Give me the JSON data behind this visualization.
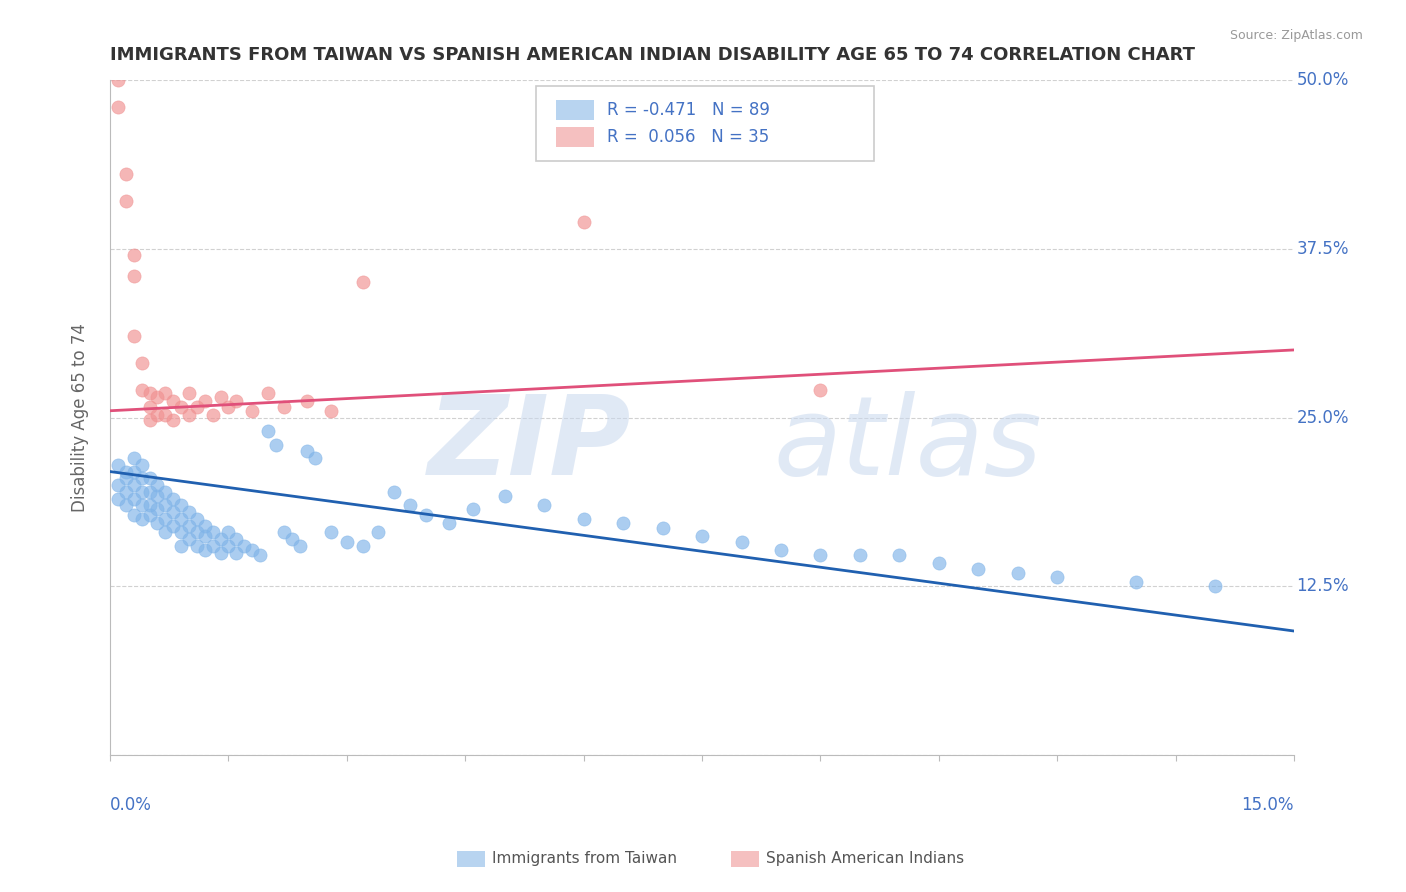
{
  "title": "IMMIGRANTS FROM TAIWAN VS SPANISH AMERICAN INDIAN DISABILITY AGE 65 TO 74 CORRELATION CHART",
  "source": "Source: ZipAtlas.com",
  "ylabel_label": "Disability Age 65 to 74",
  "xmin": 0.0,
  "xmax": 0.15,
  "ymin": 0.0,
  "ymax": 0.5,
  "blue_scatter_x": [
    0.001,
    0.001,
    0.001,
    0.002,
    0.002,
    0.002,
    0.002,
    0.003,
    0.003,
    0.003,
    0.003,
    0.003,
    0.004,
    0.004,
    0.004,
    0.004,
    0.004,
    0.005,
    0.005,
    0.005,
    0.005,
    0.006,
    0.006,
    0.006,
    0.006,
    0.007,
    0.007,
    0.007,
    0.007,
    0.008,
    0.008,
    0.008,
    0.009,
    0.009,
    0.009,
    0.009,
    0.01,
    0.01,
    0.01,
    0.011,
    0.011,
    0.011,
    0.012,
    0.012,
    0.012,
    0.013,
    0.013,
    0.014,
    0.014,
    0.015,
    0.015,
    0.016,
    0.016,
    0.017,
    0.018,
    0.019,
    0.02,
    0.021,
    0.022,
    0.023,
    0.024,
    0.025,
    0.026,
    0.028,
    0.03,
    0.032,
    0.034,
    0.036,
    0.038,
    0.04,
    0.043,
    0.046,
    0.05,
    0.055,
    0.06,
    0.065,
    0.07,
    0.075,
    0.08,
    0.085,
    0.09,
    0.095,
    0.1,
    0.105,
    0.11,
    0.115,
    0.12,
    0.13,
    0.14
  ],
  "blue_scatter_y": [
    0.215,
    0.2,
    0.19,
    0.21,
    0.205,
    0.195,
    0.185,
    0.22,
    0.21,
    0.2,
    0.19,
    0.178,
    0.215,
    0.205,
    0.195,
    0.185,
    0.175,
    0.205,
    0.195,
    0.185,
    0.178,
    0.2,
    0.192,
    0.182,
    0.172,
    0.195,
    0.185,
    0.175,
    0.165,
    0.19,
    0.18,
    0.17,
    0.185,
    0.175,
    0.165,
    0.155,
    0.18,
    0.17,
    0.16,
    0.175,
    0.165,
    0.155,
    0.17,
    0.162,
    0.152,
    0.165,
    0.155,
    0.16,
    0.15,
    0.165,
    0.155,
    0.16,
    0.15,
    0.155,
    0.152,
    0.148,
    0.24,
    0.23,
    0.165,
    0.16,
    0.155,
    0.225,
    0.22,
    0.165,
    0.158,
    0.155,
    0.165,
    0.195,
    0.185,
    0.178,
    0.172,
    0.182,
    0.192,
    0.185,
    0.175,
    0.172,
    0.168,
    0.162,
    0.158,
    0.152,
    0.148,
    0.148,
    0.148,
    0.142,
    0.138,
    0.135,
    0.132,
    0.128,
    0.125
  ],
  "pink_scatter_x": [
    0.001,
    0.001,
    0.002,
    0.002,
    0.003,
    0.003,
    0.003,
    0.004,
    0.004,
    0.005,
    0.005,
    0.005,
    0.006,
    0.006,
    0.007,
    0.007,
    0.008,
    0.008,
    0.009,
    0.01,
    0.01,
    0.011,
    0.012,
    0.013,
    0.014,
    0.015,
    0.016,
    0.018,
    0.02,
    0.022,
    0.025,
    0.028,
    0.032,
    0.06,
    0.09
  ],
  "pink_scatter_y": [
    0.5,
    0.48,
    0.43,
    0.41,
    0.37,
    0.355,
    0.31,
    0.29,
    0.27,
    0.268,
    0.258,
    0.248,
    0.265,
    0.252,
    0.268,
    0.252,
    0.262,
    0.248,
    0.258,
    0.268,
    0.252,
    0.258,
    0.262,
    0.252,
    0.265,
    0.258,
    0.262,
    0.255,
    0.268,
    0.258,
    0.262,
    0.255,
    0.35,
    0.395,
    0.27
  ],
  "blue_line_x": [
    0.0,
    0.15
  ],
  "blue_line_y": [
    0.21,
    0.092
  ],
  "pink_line_x": [
    0.0,
    0.15
  ],
  "pink_line_y": [
    0.255,
    0.3
  ],
  "dot_color_blue": "#7fb3e8",
  "dot_color_pink": "#f09090",
  "line_color_blue": "#2060b0",
  "line_color_pink": "#e0507a",
  "legend_box_blue": "#b8d4f0",
  "legend_box_pink": "#f5c0c0",
  "axis_label_color": "#4472c4",
  "title_color": "#333333",
  "grid_color": "#cccccc",
  "background_color": "#ffffff",
  "watermark1": "ZIP",
  "watermark2": "atlas"
}
